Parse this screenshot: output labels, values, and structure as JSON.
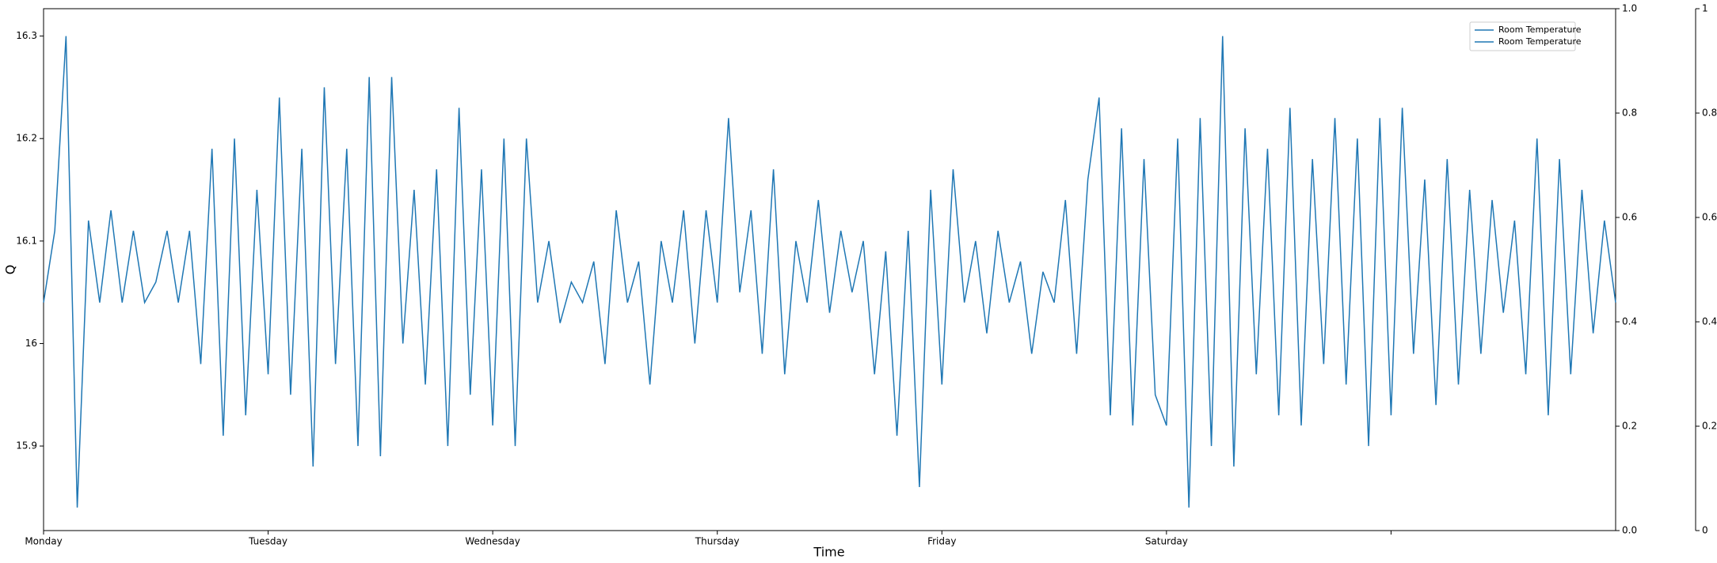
{
  "chart_data": {
    "type": "line",
    "xlabel": "Time",
    "ylabel": "Q",
    "xlim": [
      0,
      7
    ],
    "xticks": [
      {
        "value": 0,
        "label": "Monday"
      },
      {
        "value": 1,
        "label": "Tuesday"
      },
      {
        "value": 2,
        "label": "Wednesday"
      },
      {
        "value": 3,
        "label": "Thursday"
      },
      {
        "value": 4,
        "label": "Friday"
      },
      {
        "value": 5,
        "label": "Saturday"
      },
      {
        "value": 6,
        "label": null
      }
    ],
    "ylim": [
      15.8175,
      16.3267
    ],
    "yticks": [
      15.9,
      16.0,
      16.1,
      16.2,
      16.3
    ],
    "y2lim": [
      0,
      1
    ],
    "y2ticks": [
      {
        "value": 0,
        "label": "0.0"
      },
      0.2,
      0.4,
      0.6,
      0.8,
      {
        "value": 1,
        "label": "1.0"
      }
    ],
    "y3lim": [
      0,
      1
    ],
    "y3ticks": [
      0,
      0.2,
      0.4,
      0.6,
      0.8,
      1
    ],
    "legend_loc": "upper right",
    "x": [
      0,
      0.05,
      0.1,
      0.15,
      0.2,
      0.25,
      0.3,
      0.35,
      0.4,
      0.45,
      0.5,
      0.55,
      0.6,
      0.65,
      0.7,
      0.75,
      0.8,
      0.85,
      0.9,
      0.95,
      1,
      1.05,
      1.1,
      1.15,
      1.2,
      1.25,
      1.3,
      1.35,
      1.4,
      1.45,
      1.5,
      1.55,
      1.6,
      1.65,
      1.7,
      1.75,
      1.8,
      1.85,
      1.9,
      1.95,
      2,
      2.05,
      2.1,
      2.15,
      2.2,
      2.25,
      2.3,
      2.35,
      2.4,
      2.45,
      2.5,
      2.55,
      2.6,
      2.65,
      2.7,
      2.75,
      2.8,
      2.85,
      2.9,
      2.95,
      3,
      3.05,
      3.1,
      3.15,
      3.2,
      3.25,
      3.3,
      3.35,
      3.4,
      3.45,
      3.5,
      3.55,
      3.6,
      3.65,
      3.7,
      3.75,
      3.8,
      3.85,
      3.9,
      3.95,
      4,
      4.05,
      4.1,
      4.15,
      4.2,
      4.25,
      4.3,
      4.35,
      4.4,
      4.45,
      4.5,
      4.55,
      4.6,
      4.65,
      4.7,
      4.75,
      4.8,
      4.85,
      4.9,
      4.95,
      5,
      5.05,
      5.1,
      5.15,
      5.2,
      5.25,
      5.3,
      5.35,
      5.4,
      5.45,
      5.5,
      5.55,
      5.6,
      5.65,
      5.7,
      5.75,
      5.8,
      5.85,
      5.9,
      5.95,
      6,
      6.05,
      6.1,
      6.15,
      6.2,
      6.25,
      6.3,
      6.35,
      6.4,
      6.45,
      6.5,
      6.55,
      6.6,
      6.65,
      6.7,
      6.75,
      6.8,
      6.85,
      6.9,
      6.95,
      7
    ],
    "series": [
      {
        "name": "Room Temperature",
        "color": "#1f77b4",
        "values": [
          16.04,
          16.11,
          16.3,
          15.84,
          16.12,
          16.04,
          16.13,
          16.04,
          16.11,
          16.04,
          16.06,
          16.11,
          16.04,
          16.11,
          15.98,
          16.19,
          15.91,
          16.2,
          15.93,
          16.15,
          15.97,
          16.24,
          15.95,
          16.19,
          15.88,
          16.25,
          15.98,
          16.19,
          15.9,
          16.26,
          15.89,
          16.26,
          16.0,
          16.15,
          15.96,
          16.17,
          15.9,
          16.23,
          15.95,
          16.17,
          15.92,
          16.2,
          15.9,
          16.2,
          16.04,
          16.1,
          16.02,
          16.06,
          16.04,
          16.08,
          15.98,
          16.13,
          16.04,
          16.08,
          15.96,
          16.1,
          16.04,
          16.13,
          16.0,
          16.13,
          16.04,
          16.22,
          16.05,
          16.13,
          15.99,
          16.17,
          15.97,
          16.1,
          16.04,
          16.14,
          16.03,
          16.11,
          16.05,
          16.1,
          15.97,
          16.09,
          15.91,
          16.11,
          15.86,
          16.15,
          15.96,
          16.17,
          16.04,
          16.1,
          16.01,
          16.11,
          16.04,
          16.08,
          15.99,
          16.07,
          16.04,
          16.14,
          15.99,
          16.16,
          16.24,
          15.93,
          16.21,
          15.92,
          16.18,
          15.95,
          15.92,
          16.2,
          15.84,
          16.22,
          15.9,
          16.3,
          15.88,
          16.21,
          15.97,
          16.19,
          15.93,
          16.23,
          15.92,
          16.18,
          15.98,
          16.22,
          15.96,
          16.2,
          15.9,
          16.22,
          15.93,
          16.23,
          15.99,
          16.16,
          15.94,
          16.18,
          15.96,
          16.15,
          15.99,
          16.14,
          16.03,
          16.12,
          15.97,
          16.2,
          15.93,
          16.18,
          15.97,
          16.15,
          16.01,
          16.12,
          16.04
        ]
      },
      {
        "name": "Room Temperature",
        "color": "#1f77b4",
        "axis": "y2"
      }
    ]
  }
}
